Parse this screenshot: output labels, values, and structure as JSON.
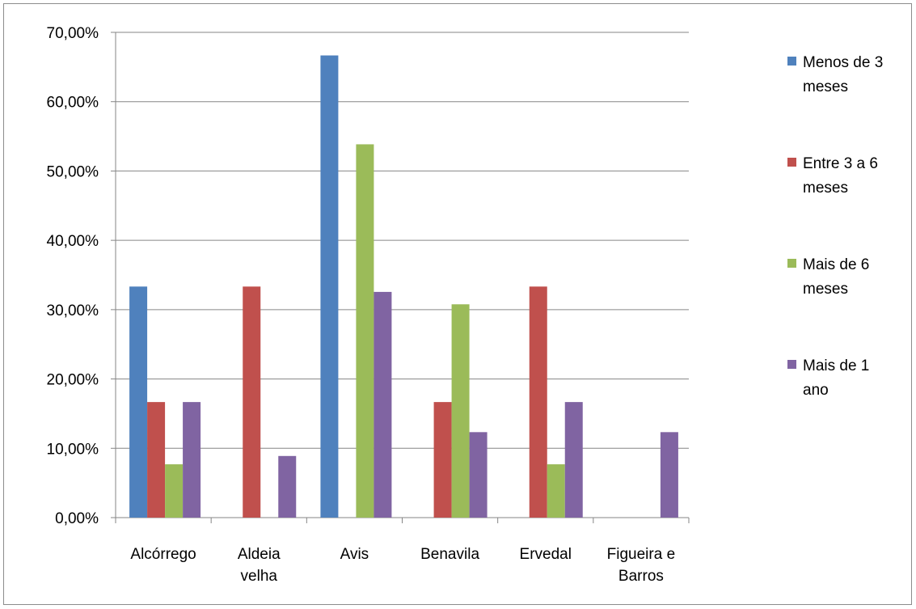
{
  "chart_data": {
    "type": "bar",
    "title": "",
    "xlabel": "",
    "ylabel": "",
    "ylim": [
      0,
      0.7
    ],
    "y_ticks": [
      0,
      0.1,
      0.2,
      0.3,
      0.4,
      0.5,
      0.6,
      0.7
    ],
    "y_tick_labels": [
      "0,00%",
      "10,00%",
      "20,00%",
      "30,00%",
      "40,00%",
      "50,00%",
      "60,00%",
      "70,00%"
    ],
    "grid": true,
    "legend_position": "right",
    "categories": [
      "Alcórrego",
      "Aldeia velha",
      "Avis",
      "Benavila",
      "Ervedal",
      "Figueira e Barros"
    ],
    "category_label_lines": [
      [
        "Alcórrego"
      ],
      [
        "Aldeia",
        "velha"
      ],
      [
        "Avis"
      ],
      [
        "Benavila"
      ],
      [
        "Ervedal"
      ],
      [
        "Figueira e",
        "Barros"
      ]
    ],
    "series": [
      {
        "name": "Menos de 3 meses",
        "legend_lines": [
          "Menos de 3",
          "meses"
        ],
        "color": "#4F81BD",
        "values": [
          0.3333,
          0,
          0.6667,
          0,
          0,
          0
        ]
      },
      {
        "name": "Entre 3 a 6 meses",
        "legend_lines": [
          "Entre 3 a 6",
          "meses"
        ],
        "color": "#C0504D",
        "values": [
          0.1667,
          0.3333,
          0,
          0.1667,
          0.3333,
          0
        ]
      },
      {
        "name": "Mais de 6 meses",
        "legend_lines": [
          "Mais de 6",
          "meses"
        ],
        "color": "#9BBB59",
        "values": [
          0.0769,
          0,
          0.5385,
          0.3077,
          0.0769,
          0
        ]
      },
      {
        "name": "Mais de 1 ano",
        "legend_lines": [
          "Mais de 1",
          "ano"
        ],
        "color": "#8064A2",
        "values": [
          0.1667,
          0.0889,
          0.3256,
          0.1233,
          0.1667,
          0.1233
        ]
      }
    ]
  }
}
